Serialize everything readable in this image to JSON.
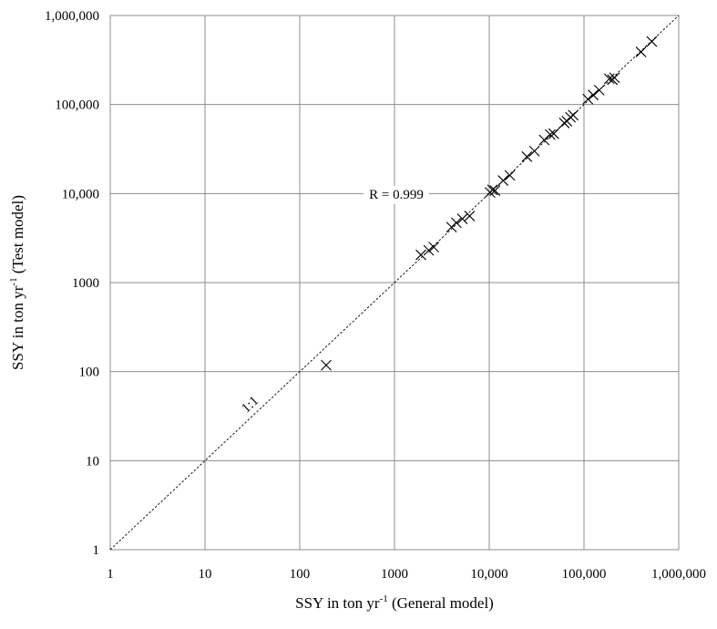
{
  "chart_data": {
    "type": "scatter",
    "title": "",
    "xlabel": {
      "prefix": "SSY in ton yr",
      "sup": "-1",
      "suffix": " (General model)"
    },
    "ylabel": {
      "prefix": "SSY in ton yr",
      "sup": "-1",
      "suffix": " (Test model)"
    },
    "xscale": "log",
    "yscale": "log",
    "xlim": [
      1,
      1000000
    ],
    "ylim": [
      1,
      1000000
    ],
    "grid": true,
    "legend": "none",
    "x_ticks": [
      {
        "value": 1,
        "label": "1"
      },
      {
        "value": 10,
        "label": "10"
      },
      {
        "value": 100,
        "label": "100"
      },
      {
        "value": 1000,
        "label": "1000"
      },
      {
        "value": 10000,
        "label": "10,000"
      },
      {
        "value": 100000,
        "label": "100,000"
      },
      {
        "value": 1000000,
        "label": "1,000,000"
      }
    ],
    "y_ticks": [
      {
        "value": 1,
        "label": "1"
      },
      {
        "value": 10,
        "label": "10"
      },
      {
        "value": 100,
        "label": "100"
      },
      {
        "value": 1000,
        "label": "1000"
      },
      {
        "value": 10000,
        "label": "10,000"
      },
      {
        "value": 100000,
        "label": "100,000"
      },
      {
        "value": 1000000,
        "label": "1,000,000"
      }
    ],
    "annotations": {
      "r_label": "R = 0.999",
      "identity_label": "1:1"
    },
    "reference_line": {
      "name": "1:1",
      "style": "dashed",
      "from": [
        1,
        1
      ],
      "to": [
        1000000,
        1000000
      ]
    },
    "series": [
      {
        "marker": "x",
        "points": [
          [
            190,
            118
          ],
          [
            1900,
            2050
          ],
          [
            2300,
            2300
          ],
          [
            2600,
            2500
          ],
          [
            4000,
            4200
          ],
          [
            4500,
            4700
          ],
          [
            5200,
            5200
          ],
          [
            6200,
            5600
          ],
          [
            10200,
            10300
          ],
          [
            10800,
            11000
          ],
          [
            11500,
            10800
          ],
          [
            14000,
            14000
          ],
          [
            16500,
            16000
          ],
          [
            25000,
            26000
          ],
          [
            30000,
            30000
          ],
          [
            38000,
            40000
          ],
          [
            44000,
            46000
          ],
          [
            48000,
            47000
          ],
          [
            62000,
            62000
          ],
          [
            66000,
            65000
          ],
          [
            72000,
            72000
          ],
          [
            77000,
            76000
          ],
          [
            110000,
            115000
          ],
          [
            125000,
            128000
          ],
          [
            145000,
            145000
          ],
          [
            185000,
            195000
          ],
          [
            200000,
            190000
          ],
          [
            210000,
            200000
          ],
          [
            400000,
            390000
          ],
          [
            520000,
            510000
          ]
        ]
      }
    ]
  }
}
